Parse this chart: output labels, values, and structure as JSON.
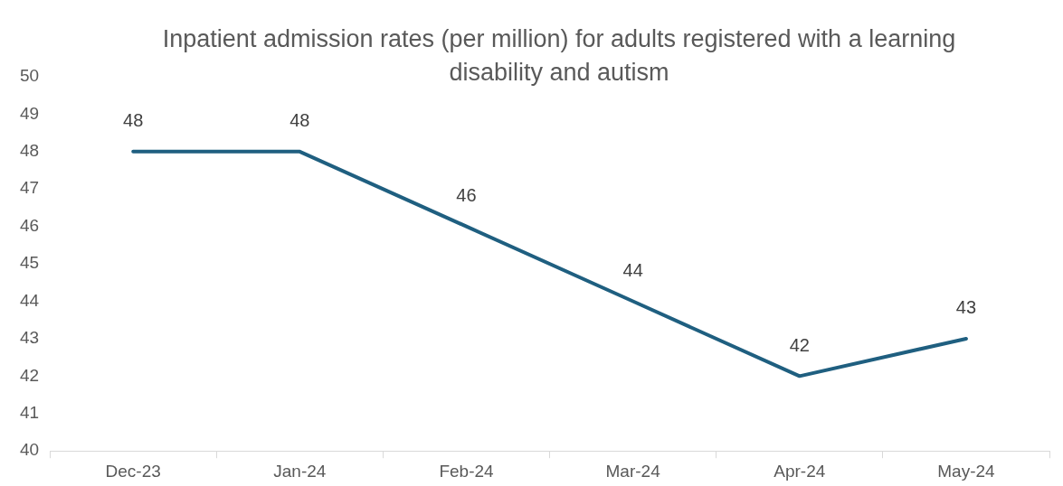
{
  "chart_data": {
    "type": "line",
    "title": "Inpatient admission rates (per million) for adults registered with a learning disability and autism",
    "categories": [
      "Dec-23",
      "Jan-24",
      "Feb-24",
      "Mar-24",
      "Apr-24",
      "May-24"
    ],
    "series": [
      {
        "color": "#1f5f80",
        "values": [
          48,
          48,
          46,
          44,
          42,
          43
        ]
      }
    ],
    "ylim": [
      40,
      50
    ],
    "yticks": [
      40,
      41,
      42,
      43,
      44,
      45,
      46,
      47,
      48,
      49,
      50
    ],
    "grid": false,
    "legend": false,
    "marker": "none",
    "line_style": "solid",
    "data_labels": true
  }
}
